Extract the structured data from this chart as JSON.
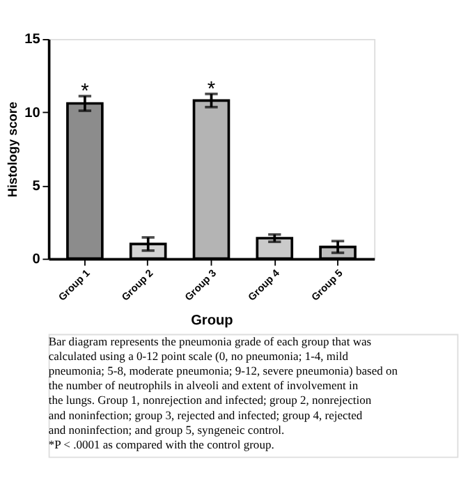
{
  "chart_data": {
    "type": "bar",
    "xlabel": "Group",
    "ylabel": "Histology score",
    "categories": [
      "Group 1",
      "Group 2",
      "Group 3",
      "Group 4",
      "Group 5"
    ],
    "values": [
      10.6,
      1.0,
      10.8,
      1.4,
      0.8
    ],
    "errors": [
      0.5,
      0.45,
      0.45,
      0.25,
      0.4
    ],
    "colors": [
      "#8c8c8c",
      "#d4d4d4",
      "#b4b4b4",
      "#cacaca",
      "#bdbdbd"
    ],
    "ylim": [
      0,
      15
    ],
    "yticks": [
      0,
      5,
      10,
      15
    ],
    "grid": false,
    "annotations": [
      {
        "text": "*",
        "x": "Group 1",
        "y": 11.1
      },
      {
        "text": "*",
        "x": "Group 3",
        "y": 11.25
      },
      "Bar diagram represents the pneumonia grade of each group that was calculated using a 0-12 point scale (0, no pneumonia; 1-4, mild pneumonia; 5-8, moderate pneumonia; 9-12, severe pneumonia) based on the number of neutrophils in alveoli and extent of involvement in the lungs. Group 1, nonrejection and infected; group 2, nonrejection and noninfection; group 3, rejected and infected; group 4, rejected and noninfection; and group 5, syngeneic control.",
      "*P < .0001 as compared with the control group."
    ]
  }
}
